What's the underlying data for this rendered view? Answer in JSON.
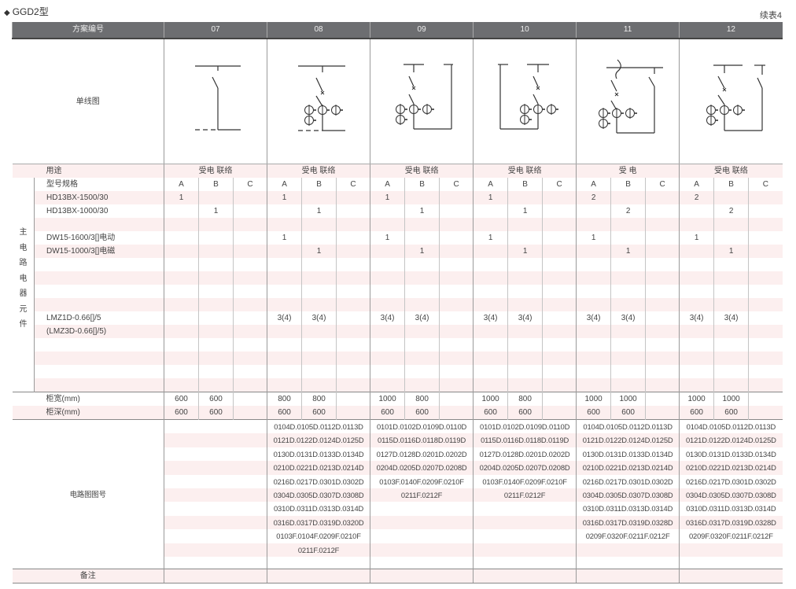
{
  "title": "GGD2型",
  "title_icon": "diamond-bullet",
  "continuation": "续表4",
  "header": {
    "scheme_label": "方案编号"
  },
  "labels": {
    "diagram": "单线图",
    "usage": "用途",
    "spec": "型号规格",
    "side": "主电路电器元件",
    "width": "柜宽(mm)",
    "depth": "柜深(mm)",
    "circuit": "电路图图号",
    "remarks": "备注"
  },
  "subcols": [
    "A",
    "B",
    "C"
  ],
  "components": [
    "HD13BX-1500/30",
    "HD13BX-1000/30",
    "",
    "DW15-1600/3[]电动",
    "DW15-1000/3[]电磁",
    "",
    "",
    "",
    "",
    "LMZ1D-0.66[]/5",
    "(LMZ3D-0.66[]/5)",
    "",
    "",
    "",
    ""
  ],
  "colors": {
    "header_bg": "#6d6e71",
    "stripe": "#fcefef"
  },
  "schemes": [
    {
      "id": "07",
      "usage": "受电 联络",
      "values": [
        [
          "1",
          "",
          ""
        ],
        [
          "",
          "1",
          ""
        ],
        [
          "",
          "",
          ""
        ],
        [
          "",
          "",
          ""
        ],
        [
          "",
          "",
          ""
        ],
        [
          "",
          "",
          ""
        ],
        [
          "",
          "",
          ""
        ],
        [
          "",
          "",
          ""
        ],
        [
          "",
          "",
          ""
        ],
        [
          "",
          "",
          ""
        ],
        [
          "",
          "",
          ""
        ],
        [
          "",
          "",
          ""
        ],
        [
          "",
          "",
          ""
        ],
        [
          "",
          "",
          ""
        ],
        [
          "",
          "",
          ""
        ]
      ],
      "width": [
        "600",
        "600",
        ""
      ],
      "depth": [
        "600",
        "600",
        ""
      ],
      "circuit": []
    },
    {
      "id": "08",
      "usage": "受电 联络",
      "values": [
        [
          "1",
          "",
          ""
        ],
        [
          "",
          "1",
          ""
        ],
        [
          "",
          "",
          ""
        ],
        [
          "1",
          "",
          ""
        ],
        [
          "",
          "1",
          ""
        ],
        [
          "",
          "",
          ""
        ],
        [
          "",
          "",
          ""
        ],
        [
          "",
          "",
          ""
        ],
        [
          "",
          "",
          ""
        ],
        [
          "3(4)",
          "3(4)",
          ""
        ],
        [
          "",
          "",
          ""
        ],
        [
          "",
          "",
          ""
        ],
        [
          "",
          "",
          ""
        ],
        [
          "",
          "",
          ""
        ],
        [
          "",
          "",
          ""
        ]
      ],
      "width": [
        "800",
        "800",
        ""
      ],
      "depth": [
        "600",
        "600",
        ""
      ],
      "circuit": [
        "0104D.0105D.0112D.0113D",
        "0121D.0122D.0124D.0125D",
        "0130D.0131D.0133D.0134D",
        "0210D.0221D.0213D.0214D",
        "0216D.0217D.0301D.0302D",
        "0304D.0305D.0307D.0308D",
        "0310D.0311D.0313D.0314D",
        "0316D.0317D.0319D.0320D",
        "0103F.0104F.0209F.0210F",
        "0211F.0212F"
      ]
    },
    {
      "id": "09",
      "usage": "受电 联络",
      "values": [
        [
          "1",
          "",
          ""
        ],
        [
          "",
          "1",
          ""
        ],
        [
          "",
          "",
          ""
        ],
        [
          "1",
          "",
          ""
        ],
        [
          "",
          "1",
          ""
        ],
        [
          "",
          "",
          ""
        ],
        [
          "",
          "",
          ""
        ],
        [
          "",
          "",
          ""
        ],
        [
          "",
          "",
          ""
        ],
        [
          "3(4)",
          "3(4)",
          ""
        ],
        [
          "",
          "",
          ""
        ],
        [
          "",
          "",
          ""
        ],
        [
          "",
          "",
          ""
        ],
        [
          "",
          "",
          ""
        ],
        [
          "",
          "",
          ""
        ]
      ],
      "width": [
        "1000",
        "800",
        ""
      ],
      "depth": [
        "600",
        "600",
        ""
      ],
      "circuit": [
        "0101D.0102D.0109D.0110D",
        "0115D.0116D.0118D.0119D",
        "0127D.0128D.0201D.0202D",
        "0204D.0205D.0207D.0208D",
        "0103F.0140F.0209F.0210F",
        "0211F.0212F"
      ]
    },
    {
      "id": "10",
      "usage": "受电 联络",
      "values": [
        [
          "1",
          "",
          ""
        ],
        [
          "",
          "1",
          ""
        ],
        [
          "",
          "",
          ""
        ],
        [
          "1",
          "",
          ""
        ],
        [
          "",
          "1",
          ""
        ],
        [
          "",
          "",
          ""
        ],
        [
          "",
          "",
          ""
        ],
        [
          "",
          "",
          ""
        ],
        [
          "",
          "",
          ""
        ],
        [
          "3(4)",
          "3(4)",
          ""
        ],
        [
          "",
          "",
          ""
        ],
        [
          "",
          "",
          ""
        ],
        [
          "",
          "",
          ""
        ],
        [
          "",
          "",
          ""
        ],
        [
          "",
          "",
          ""
        ]
      ],
      "width": [
        "1000",
        "800",
        ""
      ],
      "depth": [
        "600",
        "600",
        ""
      ],
      "circuit": [
        "0101D.0102D.0109D.0110D",
        "0115D.0116D.0118D.0119D",
        "0127D.0128D.0201D.0202D",
        "0204D.0205D.0207D.0208D",
        "0103F.0140F.0209F.0210F",
        "0211F.0212F"
      ]
    },
    {
      "id": "11",
      "usage": "受 电",
      "values": [
        [
          "2",
          "",
          ""
        ],
        [
          "",
          "2",
          ""
        ],
        [
          "",
          "",
          ""
        ],
        [
          "1",
          "",
          ""
        ],
        [
          "",
          "1",
          ""
        ],
        [
          "",
          "",
          ""
        ],
        [
          "",
          "",
          ""
        ],
        [
          "",
          "",
          ""
        ],
        [
          "",
          "",
          ""
        ],
        [
          "3(4)",
          "3(4)",
          ""
        ],
        [
          "",
          "",
          ""
        ],
        [
          "",
          "",
          ""
        ],
        [
          "",
          "",
          ""
        ],
        [
          "",
          "",
          ""
        ],
        [
          "",
          "",
          ""
        ]
      ],
      "width": [
        "1000",
        "1000",
        ""
      ],
      "depth": [
        "600",
        "600",
        ""
      ],
      "circuit": [
        "0104D.0105D.0112D.0113D",
        "0121D.0122D.0124D.0125D",
        "0130D.0131D.0133D.0134D",
        "0210D.0221D.0213D.0214D",
        "0216D.0217D.0301D.0302D",
        "0304D.0305D.0307D.0308D",
        "0310D.0311D.0313D.0314D",
        "0316D.0317D.0319D.0328D",
        "0209F.0320F.0211F.0212F"
      ]
    },
    {
      "id": "12",
      "usage": "受电 联络",
      "values": [
        [
          "2",
          "",
          ""
        ],
        [
          "",
          "2",
          ""
        ],
        [
          "",
          "",
          ""
        ],
        [
          "1",
          "",
          ""
        ],
        [
          "",
          "1",
          ""
        ],
        [
          "",
          "",
          ""
        ],
        [
          "",
          "",
          ""
        ],
        [
          "",
          "",
          ""
        ],
        [
          "",
          "",
          ""
        ],
        [
          "3(4)",
          "3(4)",
          ""
        ],
        [
          "",
          "",
          ""
        ],
        [
          "",
          "",
          ""
        ],
        [
          "",
          "",
          ""
        ],
        [
          "",
          "",
          ""
        ],
        [
          "",
          "",
          ""
        ]
      ],
      "width": [
        "1000",
        "1000",
        ""
      ],
      "depth": [
        "600",
        "600",
        ""
      ],
      "circuit": [
        "0104D.0105D.0112D.0113D",
        "0121D.0122D.0124D.0125D",
        "0130D.0131D.0133D.0134D",
        "0210D.0221D.0213D.0214D",
        "0216D.0217D.0301D.0302D",
        "0304D.0305D.0307D.0308D",
        "0310D.0311D.0313D.0314D",
        "0316D.0317D.0319D.0328D",
        "0209F.0320F.0211F.0212F"
      ]
    }
  ]
}
